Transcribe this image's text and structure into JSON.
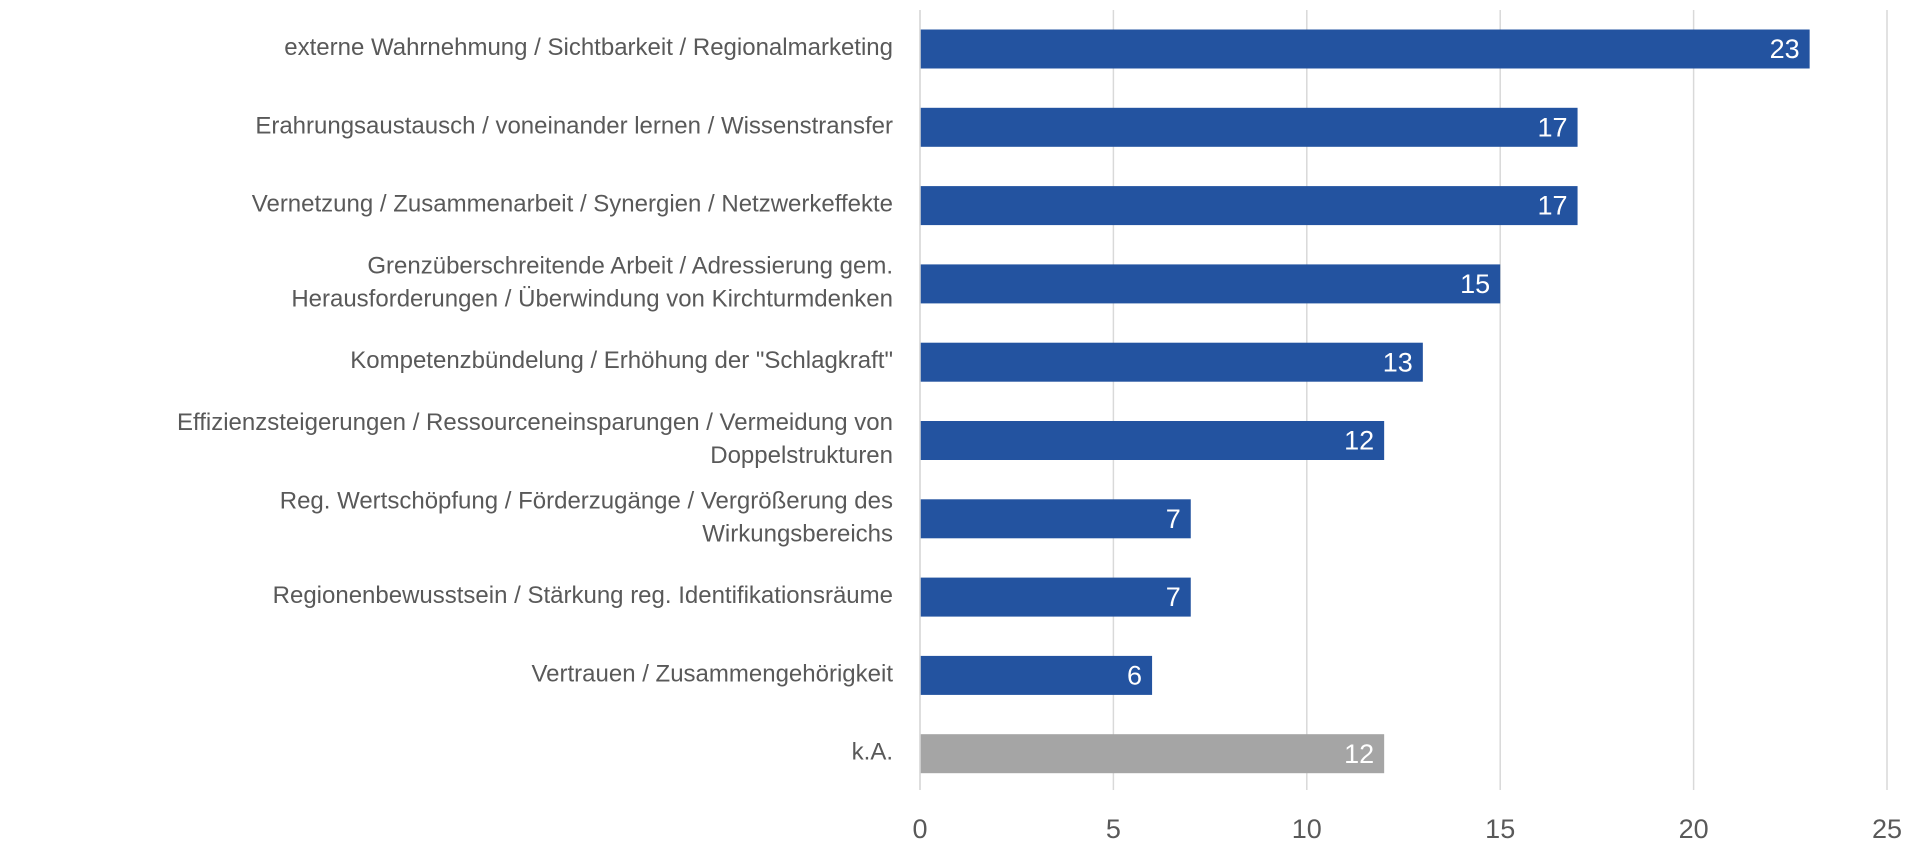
{
  "chart_data": {
    "type": "barh",
    "categories": [
      "externe Wahrnehmung / Sichtbarkeit / Regionalmarketing",
      "Erahrungsaustausch / voneinander lernen / Wissenstransfer",
      "Vernetzung / Zusammenarbeit / Synergien / Netzwerkeffekte",
      "Grenzüberschreitende Arbeit / Adressierung gem.\nHerausforderungen / Überwindung von Kirchturmdenken",
      "Kompetenzbündelung / Erhöhung der \"Schlagkraft\"",
      "Effizienzsteigerungen / Ressourceneinsparungen / Vermeidung von\nDoppelstrukturen",
      "Reg. Wertschöpfung / Förderzugänge / Vergrößerung des\nWirkungsbereichs",
      "Regionenbewusstsein / Stärkung reg. Identifikationsräume",
      "Vertrauen / Zusammengehörigkeit",
      "k.A."
    ],
    "values": [
      23,
      17,
      17,
      15,
      13,
      12,
      7,
      7,
      6,
      12
    ],
    "colors": [
      "#2353a0",
      "#2353a0",
      "#2353a0",
      "#2353a0",
      "#2353a0",
      "#2353a0",
      "#2353a0",
      "#2353a0",
      "#2353a0",
      "#a5a5a5"
    ],
    "xlim": [
      0,
      25
    ],
    "xticks": [
      0,
      5,
      10,
      15,
      20,
      25
    ],
    "grid": true
  }
}
